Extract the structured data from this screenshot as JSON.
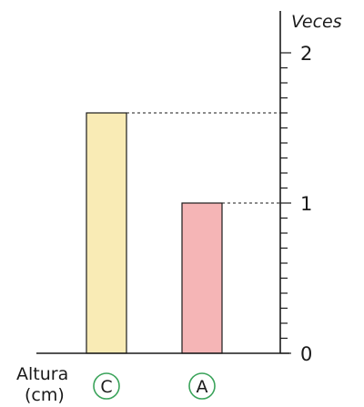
{
  "chart_data": {
    "type": "bar",
    "ylabel": "Veces",
    "xlabel": [
      "Altura",
      "(cm)"
    ],
    "categories": [
      "C",
      "A"
    ],
    "values": [
      1.6,
      1.0
    ],
    "colors": [
      "#f9ebb5",
      "#f5b5b6"
    ],
    "ylim": [
      0,
      2
    ],
    "yticks": [
      0,
      1,
      2
    ],
    "minor_tick_step": 0.1,
    "guide_lines": true,
    "grid": false
  }
}
